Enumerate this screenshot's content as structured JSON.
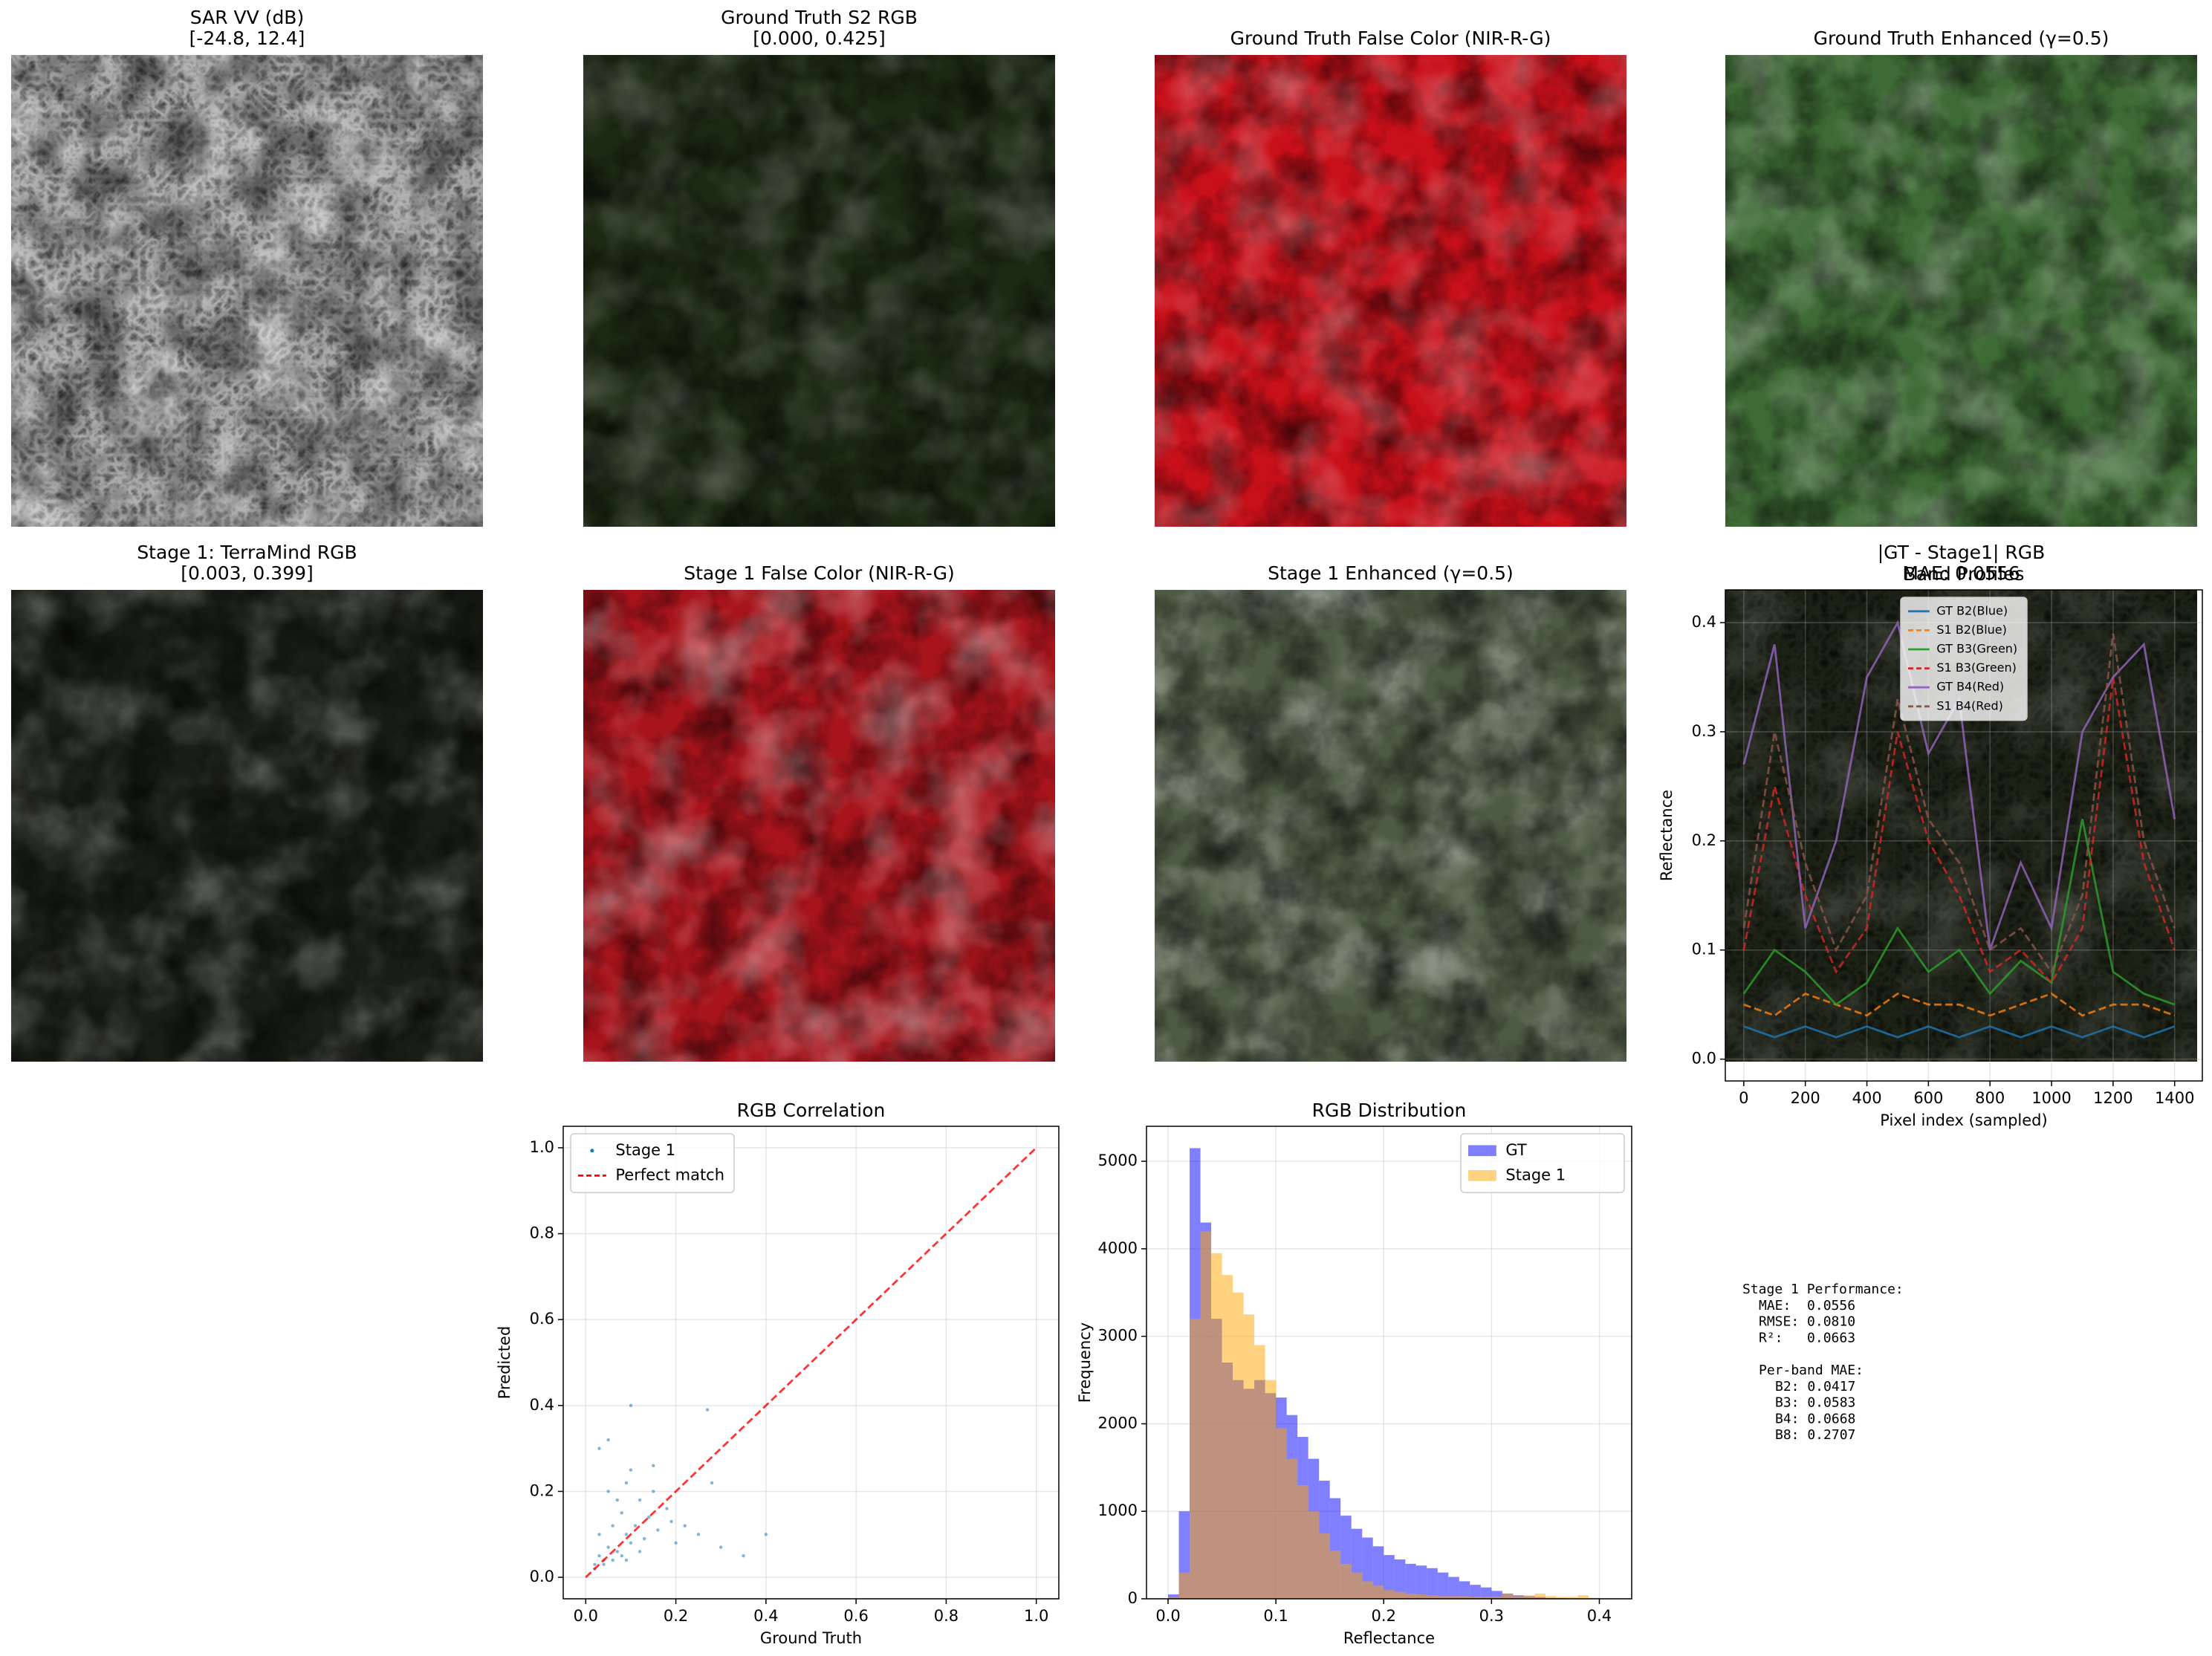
{
  "images": [
    {
      "title": "SAR VV (dB)",
      "subtitle": "[-24.8, 12.4]"
    },
    {
      "title": "Ground Truth S2 RGB",
      "subtitle": "[0.000, 0.425]"
    },
    {
      "title": "Ground Truth False Color (NIR-R-G)"
    },
    {
      "title": "Ground Truth Enhanced (γ=0.5)"
    },
    {
      "title": "Stage 1: TerraMind RGB",
      "subtitle": "[0.003, 0.399]"
    },
    {
      "title": "Stage 1 False Color (NIR-R-G)"
    },
    {
      "title": "Stage 1 Enhanced (γ=0.5)"
    },
    {
      "title": "|GT - Stage1| RGB",
      "subtitle": "MAE: 0.0556"
    }
  ],
  "chart_data": [
    {
      "type": "line",
      "title": "Band Profiles",
      "xlabel": "Pixel index (sampled)",
      "ylabel": "Reflectance",
      "grid": true,
      "legend": "upper center",
      "x": [
        0,
        100,
        200,
        300,
        400,
        500,
        600,
        700,
        800,
        900,
        1000,
        1100,
        1200,
        1300,
        1400
      ],
      "xlim": [
        -60,
        1490
      ],
      "xticks": [
        0,
        200,
        400,
        600,
        800,
        1000,
        1200,
        1400
      ],
      "ylim": [
        -0.02,
        0.43
      ],
      "yticks": [
        {
          "value": 0,
          "label": "0.0"
        },
        0.1,
        0.2,
        0.3,
        0.4
      ],
      "series": [
        {
          "name": "GT B2(Blue)",
          "color": "#1f77b4",
          "dashed": false,
          "values": [
            0.03,
            0.02,
            0.03,
            0.02,
            0.03,
            0.02,
            0.03,
            0.02,
            0.03,
            0.02,
            0.03,
            0.02,
            0.03,
            0.02,
            0.03
          ]
        },
        {
          "name": "S1 B2(Blue)",
          "color": "#ff7f0e",
          "dashed": true,
          "values": [
            0.05,
            0.04,
            0.06,
            0.05,
            0.04,
            0.06,
            0.05,
            0.05,
            0.04,
            0.05,
            0.06,
            0.04,
            0.05,
            0.05,
            0.04
          ]
        },
        {
          "name": "GT B3(Green)",
          "color": "#2ca02c",
          "dashed": false,
          "values": [
            0.06,
            0.1,
            0.08,
            0.05,
            0.07,
            0.12,
            0.08,
            0.1,
            0.06,
            0.09,
            0.07,
            0.22,
            0.08,
            0.06,
            0.05
          ]
        },
        {
          "name": "S1 B3(Green)",
          "color": "#d62728",
          "dashed": true,
          "values": [
            0.1,
            0.25,
            0.15,
            0.08,
            0.12,
            0.3,
            0.2,
            0.15,
            0.08,
            0.1,
            0.07,
            0.12,
            0.35,
            0.18,
            0.1
          ]
        },
        {
          "name": "GT B4(Red)",
          "color": "#9467bd",
          "dashed": false,
          "values": [
            0.27,
            0.38,
            0.12,
            0.2,
            0.35,
            0.4,
            0.28,
            0.33,
            0.1,
            0.18,
            0.12,
            0.3,
            0.35,
            0.38,
            0.22
          ]
        },
        {
          "name": "S1 B4(Red)",
          "color": "#8c564b",
          "dashed": true,
          "values": [
            0.12,
            0.3,
            0.18,
            0.1,
            0.15,
            0.33,
            0.22,
            0.18,
            0.1,
            0.12,
            0.08,
            0.15,
            0.39,
            0.2,
            0.12
          ]
        }
      ]
    },
    {
      "type": "scatter",
      "title": "RGB Correlation",
      "xlabel": "Ground Truth",
      "ylabel": "Predicted",
      "grid": true,
      "legend": "upper left",
      "xlim": [
        -0.05,
        1.05
      ],
      "xticks": [
        {
          "value": 0,
          "label": "0.0"
        },
        0.2,
        0.4,
        0.6,
        0.8,
        {
          "value": 1,
          "label": "1.0"
        }
      ],
      "ylim": [
        -0.05,
        1.05
      ],
      "yticks": [
        {
          "value": 0,
          "label": "0.0"
        },
        0.2,
        0.4,
        0.6,
        0.8,
        {
          "value": 1,
          "label": "1.0"
        }
      ],
      "series": [
        {
          "name": "Stage 1",
          "type": "scatter",
          "color": "#1f77b4",
          "x": [
            0.02,
            0.03,
            0.03,
            0.04,
            0.05,
            0.05,
            0.06,
            0.07,
            0.08,
            0.09,
            0.1,
            0.1,
            0.11,
            0.12,
            0.13,
            0.14,
            0.15,
            0.16,
            0.18,
            0.2,
            0.22,
            0.25,
            0.28,
            0.3,
            0.35,
            0.4,
            0.03,
            0.05,
            0.07,
            0.09,
            0.12,
            0.15,
            0.02,
            0.04,
            0.06,
            0.08,
            0.1,
            0.19,
            0.27,
            0.09
          ],
          "values": [
            0.03,
            0.05,
            0.1,
            0.04,
            0.07,
            0.2,
            0.12,
            0.06,
            0.15,
            0.1,
            0.08,
            0.25,
            0.12,
            0.18,
            0.09,
            0.14,
            0.2,
            0.11,
            0.16,
            0.08,
            0.12,
            0.1,
            0.22,
            0.07,
            0.05,
            0.1,
            0.3,
            0.32,
            0.18,
            0.22,
            0.06,
            0.26,
            0.02,
            0.03,
            0.04,
            0.05,
            0.4,
            0.13,
            0.39,
            0.04
          ]
        },
        {
          "name": "Perfect match",
          "type": "line",
          "color": "#ff0000",
          "dashed": true,
          "x": [
            0,
            1
          ],
          "values": [
            0,
            1
          ]
        }
      ]
    },
    {
      "type": "histogram",
      "title": "RGB Distribution",
      "xlabel": "Reflectance",
      "ylabel": "Frequency",
      "grid": true,
      "legend": "upper right",
      "xlim": [
        -0.02,
        0.43
      ],
      "xticks": [
        {
          "value": 0,
          "label": "0.0"
        },
        0.1,
        0.2,
        0.3,
        0.4
      ],
      "ylim": [
        0,
        5400
      ],
      "yticks": [
        0,
        1000,
        2000,
        3000,
        4000,
        5000
      ],
      "bins": [
        0,
        0.01,
        0.02,
        0.03,
        0.04,
        0.05,
        0.06,
        0.07,
        0.08,
        0.09,
        0.1,
        0.11,
        0.12,
        0.13,
        0.14,
        0.15,
        0.16,
        0.17,
        0.18,
        0.19,
        0.2,
        0.21,
        0.22,
        0.23,
        0.24,
        0.25,
        0.26,
        0.27,
        0.28,
        0.29,
        0.3,
        0.31,
        0.32,
        0.33,
        0.34,
        0.35,
        0.36,
        0.37,
        0.38,
        0.39,
        0.4
      ],
      "series": [
        {
          "name": "GT",
          "color": "#0000ff",
          "values": [
            50,
            1000,
            5150,
            4300,
            3200,
            2700,
            2500,
            2400,
            2500,
            2350,
            2300,
            2100,
            1850,
            1600,
            1350,
            1150,
            950,
            800,
            700,
            600,
            500,
            450,
            400,
            380,
            350,
            300,
            250,
            200,
            160,
            130,
            90,
            60,
            40,
            30,
            20,
            10,
            8,
            5,
            3,
            2
          ]
        },
        {
          "name": "Stage 1",
          "color": "#ffa500",
          "values": [
            20,
            300,
            3200,
            4200,
            3950,
            3700,
            3500,
            3250,
            2900,
            2500,
            1950,
            1600,
            1300,
            1000,
            750,
            550,
            400,
            300,
            200,
            150,
            100,
            80,
            60,
            50,
            40,
            30,
            30,
            30,
            25,
            25,
            25,
            60,
            30,
            40,
            60,
            30,
            20,
            20,
            40,
            10
          ]
        }
      ]
    }
  ],
  "performance": {
    "title": "Stage 1 Performance:",
    "overall": [
      "MAE:  0.0556",
      "RMSE: 0.0810",
      "R²:   0.0663"
    ],
    "per_band_title": "Per-band MAE:",
    "per_band": [
      "B2: 0.0417",
      "B3: 0.0583",
      "B4: 0.0668",
      "B8: 0.2707"
    ]
  }
}
